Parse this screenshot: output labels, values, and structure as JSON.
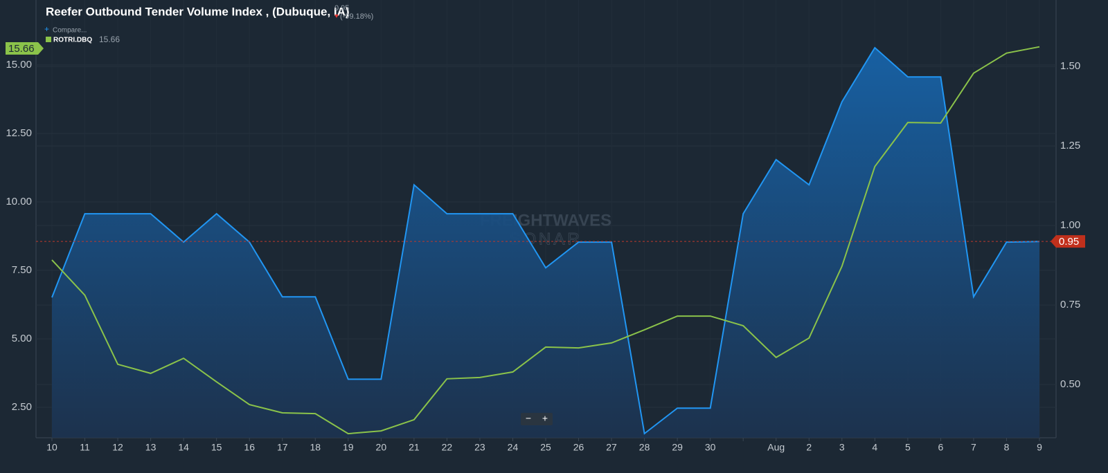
{
  "chart_data": {
    "type": "line",
    "change_label": "(-99.18%)",
    "compare_label": "Compare...",
    "watermark": [
      "FREIGHTWAVES",
      "SONAR"
    ],
    "zoom_controls": [
      "−",
      "+"
    ],
    "categories": [
      "10",
      "11",
      "12",
      "13",
      "14",
      "15",
      "16",
      "17",
      "18",
      "19",
      "20",
      "21",
      "22",
      "23",
      "24",
      "25",
      "26",
      "27",
      "28",
      "29",
      "30",
      null,
      "Aug",
      "2",
      "3",
      "4",
      "5",
      "6",
      "7",
      "8",
      "9"
    ],
    "series": [
      {
        "name": "Reefer Outbound Tender Volume Index , (Dubuque, IA)",
        "color": "#2196f3",
        "axis": "y2",
        "area": true,
        "values": [
          0.774,
          1.037,
          1.037,
          1.037,
          0.948,
          1.037,
          0.948,
          0.776,
          0.776,
          0.517,
          0.517,
          1.128,
          1.037,
          1.037,
          1.037,
          0.867,
          0.948,
          0.948,
          0.346,
          0.426,
          0.426,
          1.037,
          1.207,
          1.128,
          1.389,
          1.559,
          1.467,
          1.467,
          0.776,
          0.948,
          0.95
        ]
      },
      {
        "name": "ROTRI.DBQ",
        "color": "#8bc34a",
        "axis": "y",
        "values": [
          7.88,
          6.59,
          4.07,
          3.74,
          4.29,
          3.43,
          2.6,
          2.3,
          2.27,
          1.54,
          1.64,
          2.05,
          3.54,
          3.59,
          3.79,
          4.7,
          4.67,
          4.85,
          5.33,
          5.83,
          5.83,
          5.48,
          4.32,
          5.03,
          7.65,
          11.29,
          12.9,
          12.88,
          14.7,
          15.43,
          15.66
        ]
      }
    ],
    "ylim": [
      1.39,
      17.37
    ],
    "yticks": [
      {
        "value": 2.5,
        "label": "2.50"
      },
      {
        "value": 5,
        "label": "5.00"
      },
      {
        "value": 7.5,
        "label": "7.50"
      },
      {
        "value": 10,
        "label": "10.00"
      },
      {
        "value": 12.5,
        "label": "12.50"
      },
      {
        "value": 15,
        "label": "15.00"
      }
    ],
    "y2lim": [
      0.333,
      1.709
    ],
    "y2ticks": [
      {
        "value": 0.5,
        "label": "0.50"
      },
      {
        "value": 0.75,
        "label": "0.75"
      },
      {
        "value": 1,
        "label": "1.00"
      },
      {
        "value": 1.25,
        "label": "1.25"
      },
      {
        "value": 1.5,
        "label": "1.50"
      }
    ],
    "grid": true
  }
}
